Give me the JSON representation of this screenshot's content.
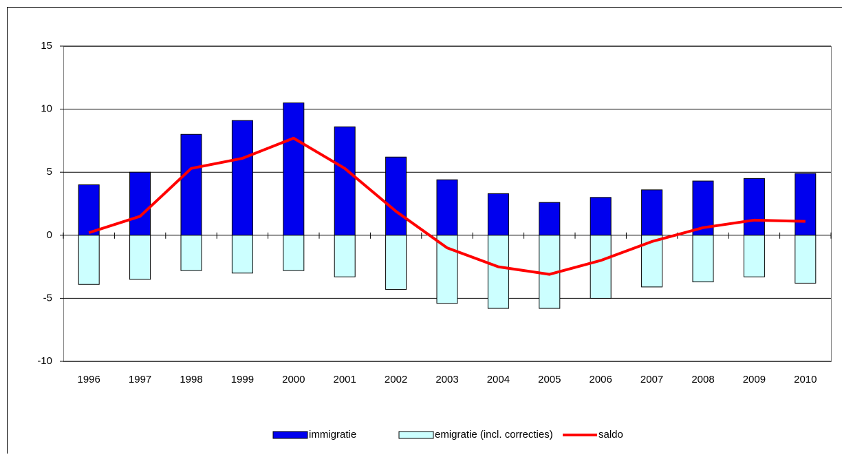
{
  "chart_data": {
    "type": "bar",
    "categories": [
      "1996",
      "1997",
      "1998",
      "1999",
      "2000",
      "2001",
      "2002",
      "2003",
      "2004",
      "2005",
      "2006",
      "2007",
      "2008",
      "2009",
      "2010"
    ],
    "series": [
      {
        "name": "immigratie",
        "color": "#0000ee",
        "type": "bar",
        "values": [
          4.0,
          5.0,
          8.0,
          9.1,
          10.5,
          8.6,
          6.2,
          4.4,
          3.3,
          2.6,
          3.0,
          3.6,
          4.3,
          4.5,
          4.9
        ]
      },
      {
        "name": "emigratie (incl. correcties)",
        "color": "#ccffff",
        "type": "bar",
        "values": [
          -3.9,
          -3.5,
          -2.8,
          -3.0,
          -2.8,
          -3.3,
          -4.3,
          -5.4,
          -5.8,
          -5.8,
          -5.0,
          -4.1,
          -3.7,
          -3.3,
          -3.8
        ]
      },
      {
        "name": "saldo",
        "color": "#ff0000",
        "type": "line",
        "values": [
          0.2,
          1.5,
          5.3,
          6.1,
          7.7,
          5.3,
          1.9,
          -1.0,
          -2.5,
          -3.1,
          -2.0,
          -0.5,
          0.6,
          1.2,
          1.1
        ]
      }
    ],
    "ylim": [
      -10,
      15
    ],
    "yticks": [
      -10,
      -5,
      0,
      5,
      10,
      15
    ],
    "grid": true
  }
}
